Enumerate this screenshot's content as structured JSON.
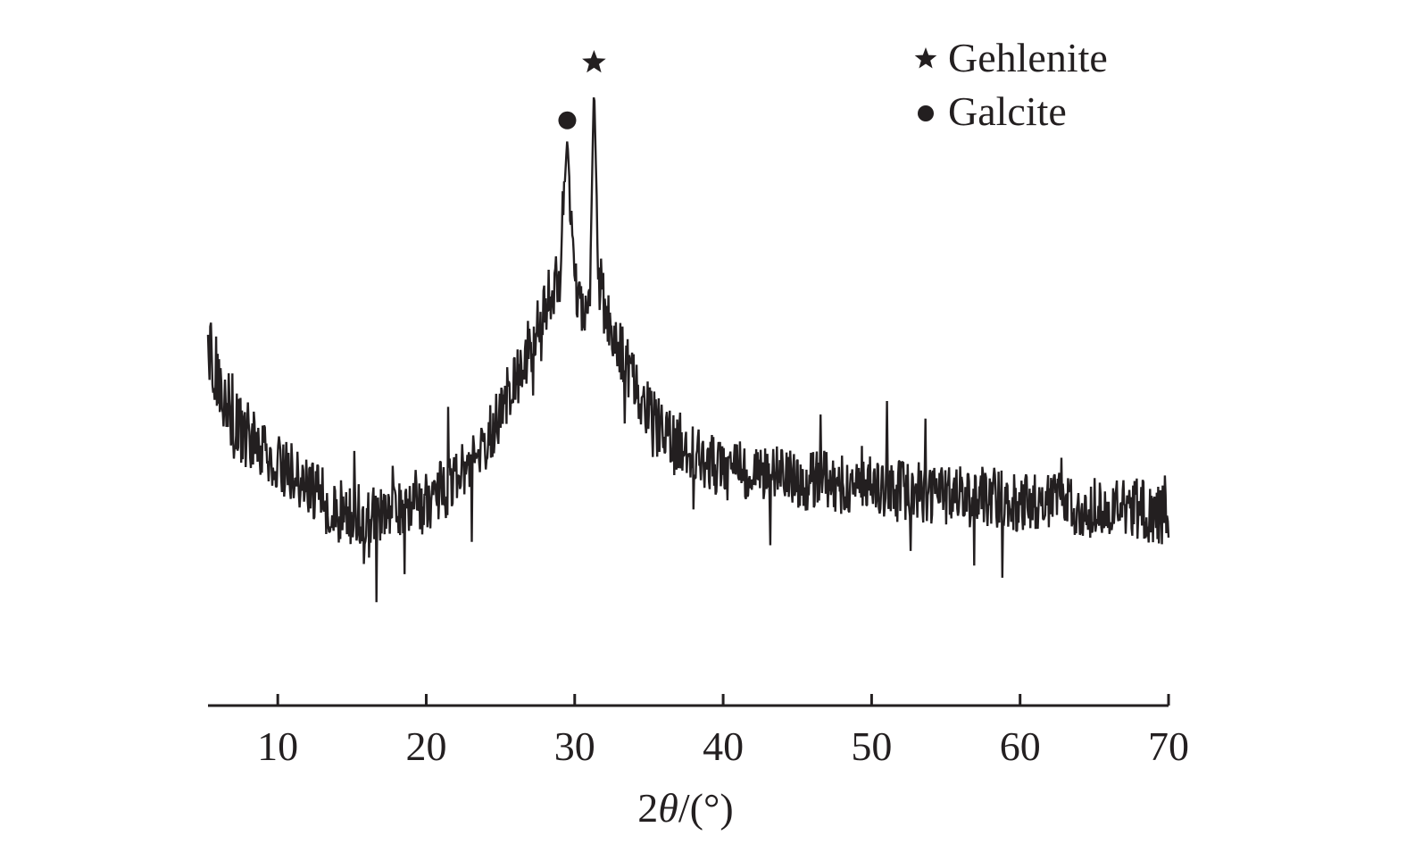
{
  "chart_data": {
    "type": "line",
    "title": "",
    "xlabel_prefix": "2",
    "xlabel_theta": "θ",
    "xlabel_suffix": "/(°)",
    "ylabel": "",
    "xlim": [
      5.3,
      70
    ],
    "ylim": [
      0,
      100
    ],
    "x_ticks": [
      10,
      20,
      30,
      40,
      50,
      60,
      70
    ],
    "y_axis_visible": false,
    "grid": false,
    "legend_position": "top-right",
    "legend": [
      {
        "marker": "star",
        "label": "Gehlenite"
      },
      {
        "marker": "circle",
        "label": "Galcite"
      }
    ],
    "peak_markers": [
      {
        "phase": "Galcite",
        "marker": "circle",
        "x": 29.5
      },
      {
        "phase": "Gehlenite",
        "marker": "star",
        "x": 31.3
      }
    ],
    "series": [
      {
        "color": "#231f20",
        "x": [
          5.3,
          6,
          7,
          8,
          9,
          10,
          11,
          12,
          13,
          14,
          15,
          16,
          17,
          18,
          19,
          20,
          21,
          22,
          23,
          24,
          25,
          26,
          27,
          28,
          29,
          29.5,
          30,
          30.5,
          31,
          31.3,
          31.6,
          32,
          33,
          34,
          35,
          36,
          37,
          38,
          39,
          40,
          41,
          42,
          43,
          44,
          45,
          46,
          47,
          48,
          49,
          50,
          51,
          52,
          53,
          54,
          55,
          56,
          57,
          58,
          59,
          60,
          61,
          62,
          63,
          64,
          65,
          66,
          67,
          68,
          69,
          70
        ],
        "y": [
          55,
          47,
          41,
          37,
          34,
          32,
          30,
          28,
          26,
          24,
          23,
          23,
          23,
          23,
          24,
          25,
          27,
          29,
          32,
          36,
          41,
          47,
          53,
          60,
          66,
          90,
          65,
          58,
          60,
          100,
          66,
          60,
          53,
          46,
          42,
          38,
          36,
          34,
          32,
          31,
          30,
          30,
          30,
          30,
          29,
          29,
          29,
          28,
          28,
          28,
          27,
          27,
          27,
          26,
          26,
          26,
          26,
          26,
          25,
          25,
          25,
          25,
          25,
          24,
          24,
          24,
          24,
          24,
          23,
          23
        ]
      }
    ]
  }
}
